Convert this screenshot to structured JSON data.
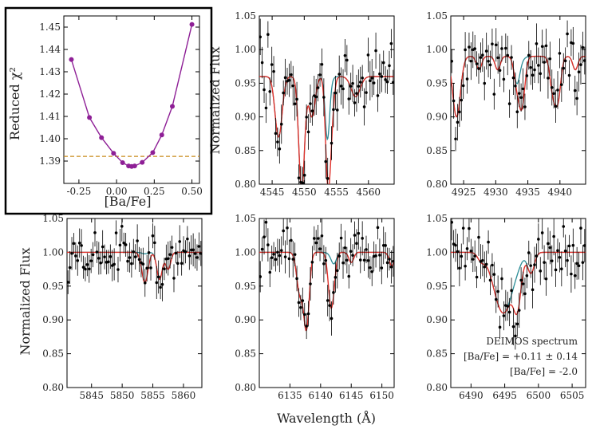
{
  "figure": {
    "shared_xlabel": "Wavelength (Å)",
    "shared_ylabel": "Normalized Flux",
    "legend": {
      "line1": "DEIMOS spectrum",
      "line2": "[Ba/Fe] = +0.11 ± 0.14",
      "line3": "[Ba/Fe] = -2.0",
      "color_obs": "#000000",
      "color_fit": "#e0312b",
      "color_low": "#2a8c96"
    },
    "colors": {
      "chi": "#8e1f96",
      "threshold": "#c98a1a",
      "fit": "#e0312b",
      "low": "#2a8c96",
      "obs": "#000000"
    }
  },
  "chart_data": [
    {
      "id": "chi2",
      "type": "line",
      "title": "",
      "xlabel": "[Ba/Fe]",
      "ylabel": "Reduced χ²",
      "xlim": [
        -0.35,
        0.55
      ],
      "ylim": [
        1.38,
        1.455
      ],
      "xticks": [
        "-0.25",
        "0.00",
        "0.25",
        "0.50"
      ],
      "xtick_values": [
        -0.25,
        0.0,
        0.25,
        0.5
      ],
      "yticks": [
        "1.39",
        "1.40",
        "1.41",
        "1.42",
        "1.43",
        "1.44",
        "1.45"
      ],
      "ytick_values": [
        1.39,
        1.4,
        1.41,
        1.42,
        1.43,
        1.44,
        1.45
      ],
      "x": [
        -0.3,
        -0.18,
        -0.1,
        -0.02,
        0.04,
        0.08,
        0.1,
        0.12,
        0.17,
        0.24,
        0.3,
        0.37,
        0.5
      ],
      "y": [
        1.4355,
        1.4095,
        1.4005,
        1.3935,
        1.3893,
        1.3878,
        1.3876,
        1.3878,
        1.3894,
        1.3938,
        1.4017,
        1.4145,
        1.4512
      ],
      "threshold": 1.3921
    },
    {
      "id": "p4554",
      "type": "line",
      "xlim": [
        4543,
        4564
      ],
      "ylim": [
        0.8,
        1.05
      ],
      "xticks": [
        "4545",
        "4550",
        "4555",
        "4560"
      ],
      "xtick_values": [
        4545,
        4550,
        4555,
        4560
      ],
      "yticks": [
        "0.80",
        "0.85",
        "0.90",
        "0.95",
        "1.00",
        "1.05"
      ],
      "ytick_values": [
        0.8,
        0.85,
        0.9,
        0.95,
        1.0,
        1.05
      ],
      "continuum": 0.96,
      "lines": [
        {
          "c": 4546.0,
          "d": 0.09,
          "w": 0.55,
          "ba": false
        },
        {
          "c": 4549.6,
          "d": 0.17,
          "w": 0.45,
          "ba": false
        },
        {
          "c": 4551.2,
          "d": 0.06,
          "w": 0.5,
          "ba": false
        },
        {
          "c": 4553.6,
          "d": 0.09,
          "w": 0.35,
          "ba": false
        },
        {
          "c": 4554.0,
          "d": 0.1,
          "w": 0.45,
          "ba": true
        },
        {
          "c": 4558.0,
          "d": 0.03,
          "w": 0.7,
          "ba": false
        }
      ],
      "noise": 0.022,
      "n_points": 70
    },
    {
      "id": "p4934",
      "type": "line",
      "xlim": [
        4923,
        4944
      ],
      "ylim": [
        0.8,
        1.05
      ],
      "xticks": [
        "4925",
        "4930",
        "4935",
        "4940"
      ],
      "xtick_values": [
        4925,
        4930,
        4935,
        4940
      ],
      "yticks": [
        "0.80",
        "0.85",
        "0.90",
        "0.95",
        "1.00",
        "1.05"
      ],
      "ytick_values": [
        0.8,
        0.85,
        0.9,
        0.95,
        1.0,
        1.05
      ],
      "continuum": 0.99,
      "lines": [
        {
          "c": 4923.9,
          "d": 0.09,
          "w": 0.6,
          "ba": false
        },
        {
          "c": 4927.4,
          "d": 0.02,
          "w": 0.4,
          "ba": false
        },
        {
          "c": 4930.3,
          "d": 0.02,
          "w": 0.4,
          "ba": false
        },
        {
          "c": 4933.3,
          "d": 0.04,
          "w": 0.45,
          "ba": false
        },
        {
          "c": 4934.1,
          "d": 0.07,
          "w": 0.45,
          "ba": true
        },
        {
          "c": 4938.9,
          "d": 0.05,
          "w": 0.45,
          "ba": false
        },
        {
          "c": 4939.7,
          "d": 0.06,
          "w": 0.45,
          "ba": false
        },
        {
          "c": 4942.4,
          "d": 0.02,
          "w": 0.4,
          "ba": false
        }
      ],
      "noise": 0.022,
      "n_points": 70
    },
    {
      "id": "p5853",
      "type": "line",
      "xlim": [
        5841,
        5863
      ],
      "ylim": [
        0.8,
        1.05
      ],
      "xticks": [
        "5845",
        "5850",
        "5855",
        "5860"
      ],
      "xtick_values": [
        5845,
        5850,
        5855,
        5860
      ],
      "yticks": [
        "0.80",
        "0.85",
        "0.90",
        "0.95",
        "1.00",
        "1.05"
      ],
      "ytick_values": [
        0.8,
        0.85,
        0.9,
        0.95,
        1.0,
        1.05
      ],
      "continuum": 1.0,
      "lines": [
        {
          "c": 5853.7,
          "d": 0.045,
          "w": 0.5,
          "ba": true
        },
        {
          "c": 5856.1,
          "d": 0.04,
          "w": 0.45,
          "ba": false
        },
        {
          "c": 5857.5,
          "d": 0.025,
          "w": 0.4,
          "ba": false
        }
      ],
      "noise": 0.018,
      "n_points": 70
    },
    {
      "id": "p6141",
      "type": "line",
      "xlim": [
        6130,
        6152
      ],
      "ylim": [
        0.8,
        1.05
      ],
      "xticks": [
        "6135",
        "6140",
        "6145",
        "6150"
      ],
      "xtick_values": [
        6135,
        6140,
        6145,
        6150
      ],
      "yticks": [
        "0.80",
        "0.85",
        "0.90",
        "0.95",
        "1.00",
        "1.05"
      ],
      "ytick_values": [
        0.8,
        0.85,
        0.9,
        0.95,
        1.0,
        1.05
      ],
      "continuum": 1.0,
      "lines": [
        {
          "c": 6136.6,
          "d": 0.06,
          "w": 0.5,
          "ba": false
        },
        {
          "c": 6137.7,
          "d": 0.11,
          "w": 0.45,
          "ba": false
        },
        {
          "c": 6141.7,
          "d": 0.075,
          "w": 0.45,
          "ba": true
        },
        {
          "c": 6142.2,
          "d": 0.015,
          "w": 0.4,
          "ba": false
        },
        {
          "c": 6145.0,
          "d": 0.015,
          "w": 0.4,
          "ba": false
        },
        {
          "c": 6151.6,
          "d": 0.02,
          "w": 0.4,
          "ba": false
        }
      ],
      "noise": 0.02,
      "n_points": 70
    },
    {
      "id": "p6496",
      "type": "line",
      "xlim": [
        6487,
        6507
      ],
      "ylim": [
        0.8,
        1.05
      ],
      "xticks": [
        "6490",
        "6495",
        "6500",
        "6505"
      ],
      "xtick_values": [
        6490,
        6495,
        6500,
        6505
      ],
      "yticks": [
        "0.80",
        "0.85",
        "0.90",
        "0.95",
        "1.00",
        "1.05"
      ],
      "ytick_values": [
        0.8,
        0.85,
        0.9,
        0.95,
        1.0,
        1.05
      ],
      "continuum": 1.0,
      "lines": [
        {
          "c": 6494.8,
          "d": 0.09,
          "w": 1.4,
          "ba": false
        },
        {
          "c": 6496.9,
          "d": 0.06,
          "w": 0.55,
          "ba": true
        },
        {
          "c": 6498.9,
          "d": 0.03,
          "w": 0.5,
          "ba": false
        },
        {
          "c": 6491.5,
          "d": 0.01,
          "w": 0.5,
          "ba": false
        }
      ],
      "noise": 0.02,
      "n_points": 70
    }
  ]
}
